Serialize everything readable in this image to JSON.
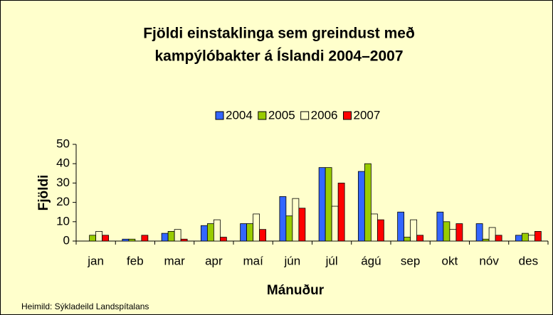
{
  "chart_data": {
    "type": "bar",
    "title": [
      "Fjöldi einstaklinga sem greindust með",
      "kampýlóbakter á Íslandi 2004–2007"
    ],
    "x_label": "Mánuður",
    "y_label": "Fjöldi",
    "source": "Heimild: Sýkladeild Landspítalans",
    "categories": [
      "jan",
      "feb",
      "mar",
      "apr",
      "maí",
      "jún",
      "júl",
      "ágú",
      "sep",
      "okt",
      "nóv",
      "des"
    ],
    "series": [
      {
        "name": "2004",
        "color": "#3366ff",
        "values": [
          0,
          1,
          4,
          8,
          9,
          23,
          38,
          36,
          15,
          15,
          9,
          3
        ]
      },
      {
        "name": "2005",
        "color": "#99cc00",
        "values": [
          3,
          1,
          5,
          9,
          9,
          13,
          38,
          40,
          2,
          10,
          1,
          4
        ]
      },
      {
        "name": "2006",
        "color": "#ffffcc",
        "values": [
          5,
          0,
          6,
          11,
          14,
          22,
          18,
          14,
          11,
          6,
          7,
          3
        ]
      },
      {
        "name": "2007",
        "color": "#ff0000",
        "values": [
          3,
          3,
          1,
          2,
          6,
          17,
          30,
          11,
          3,
          9,
          3,
          5
        ]
      }
    ],
    "ylim": [
      0,
      50
    ],
    "yticks": [
      0,
      10,
      20,
      30,
      40,
      50
    ],
    "grid": false,
    "legend": "top"
  }
}
